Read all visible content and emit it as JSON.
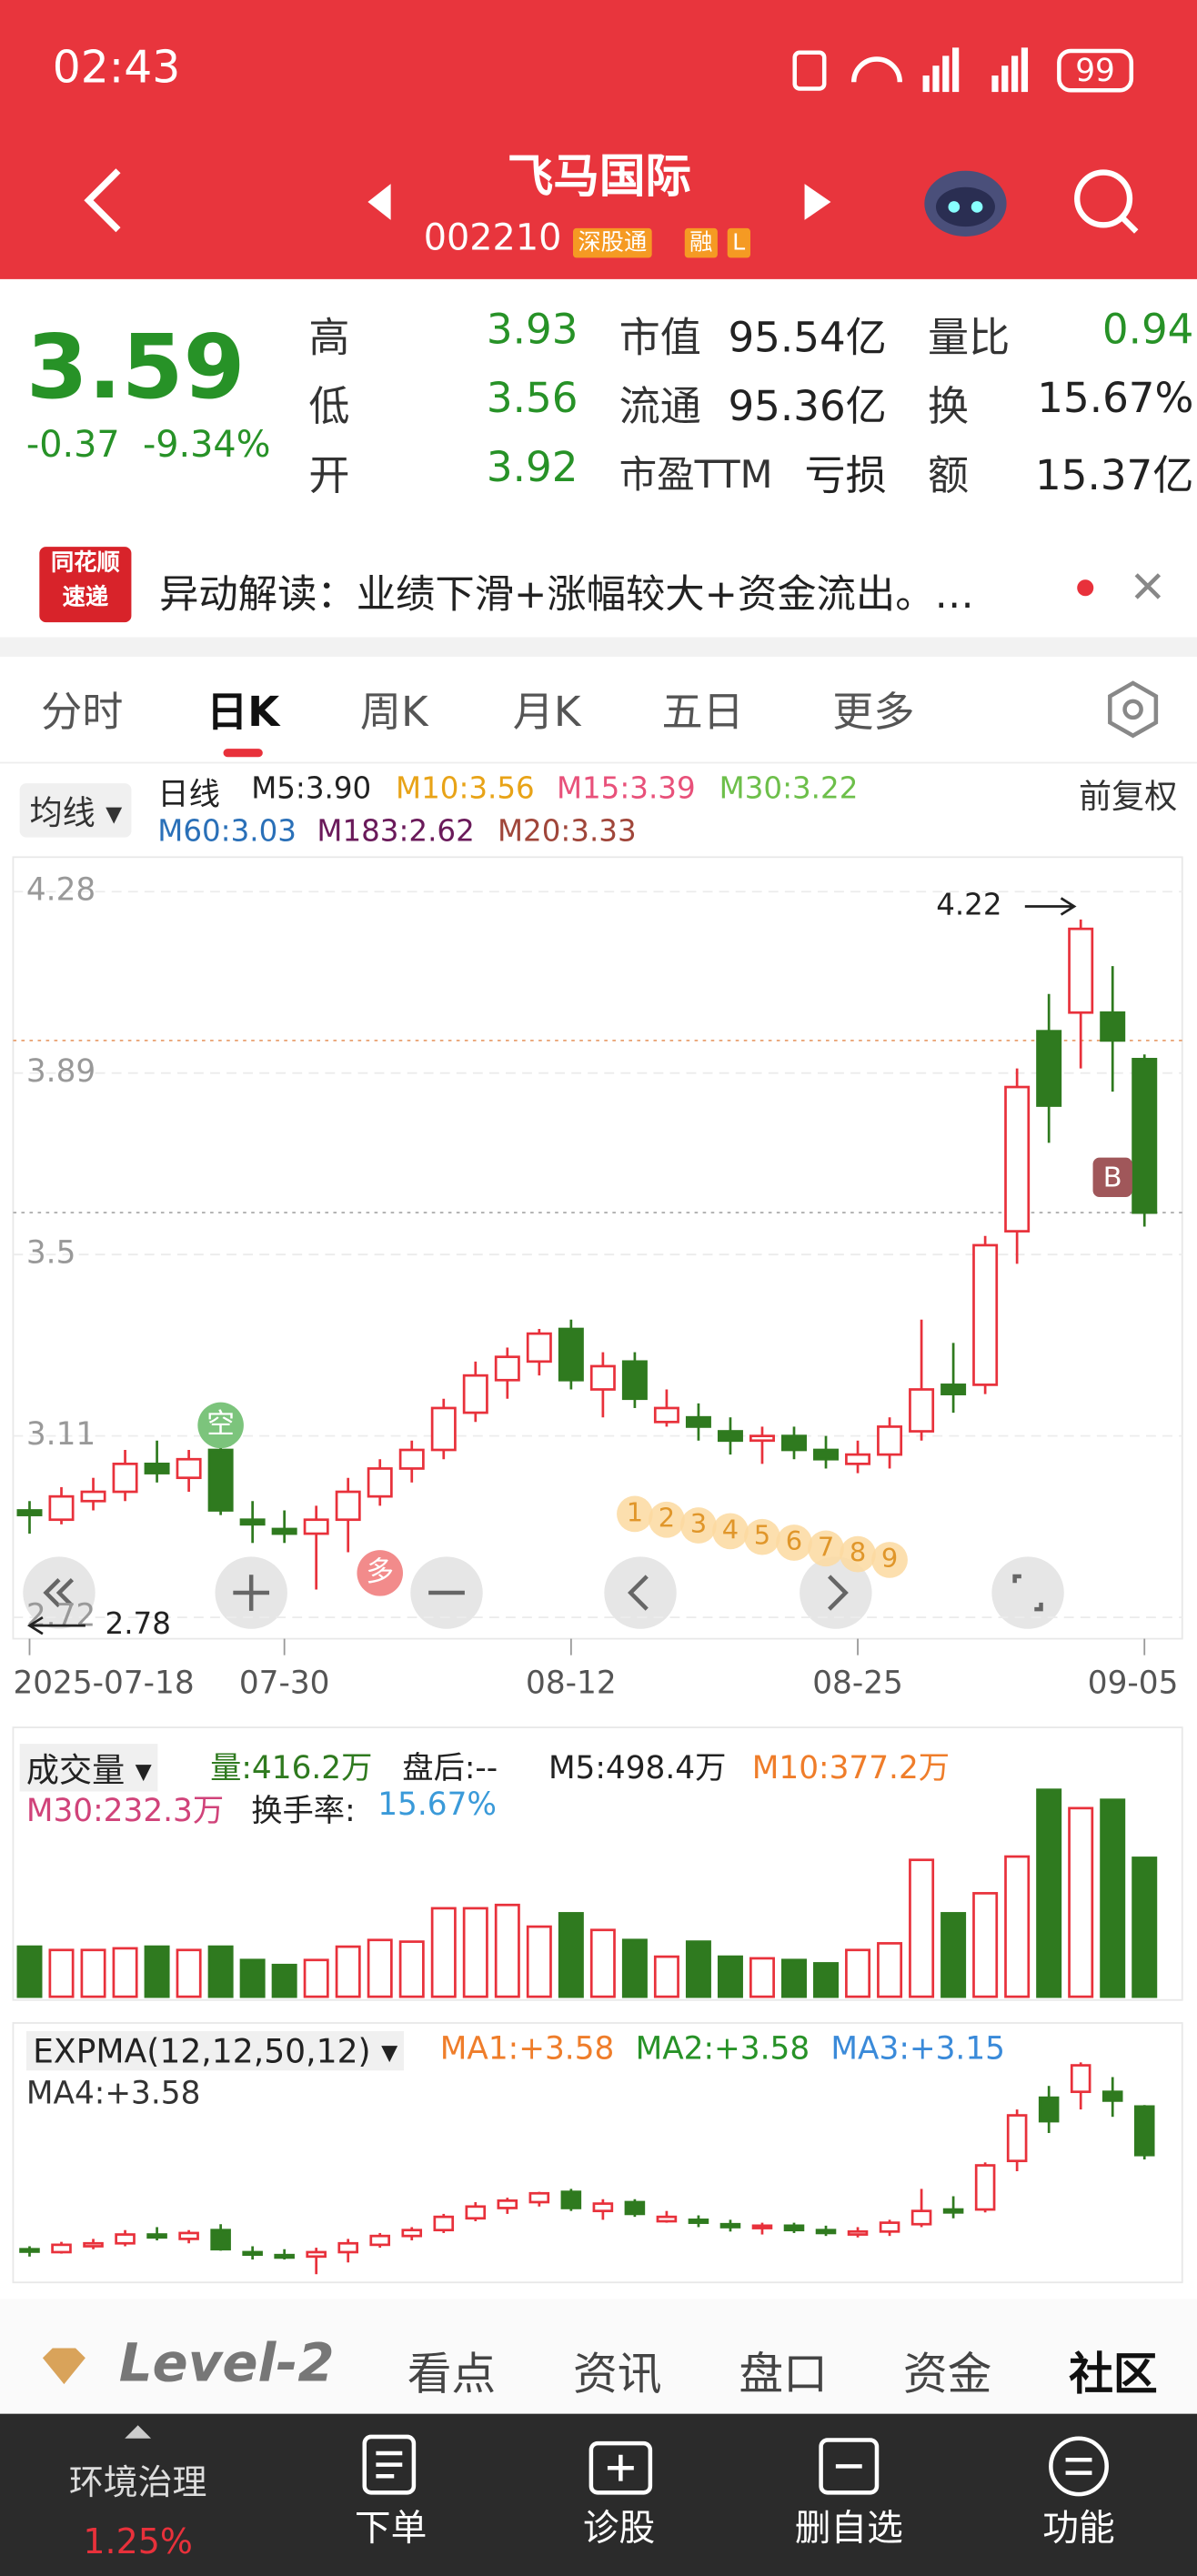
{
  "status": {
    "time": "02:43",
    "battery": "99"
  },
  "header": {
    "title": "飞马国际",
    "code": "002210",
    "tags": [
      "深股通",
      "融",
      "L"
    ]
  },
  "quote": {
    "price": "3.59",
    "change": "-0.37",
    "change_pct": "-9.34%",
    "col1": [
      [
        "高",
        "3.93"
      ],
      [
        "低",
        "3.56"
      ],
      [
        "开",
        "3.92"
      ]
    ],
    "col2": [
      [
        "市值",
        "95.54亿"
      ],
      [
        "流通",
        "95.36亿"
      ],
      [
        "市盈TTM",
        "亏损"
      ]
    ],
    "col3": [
      [
        "量比",
        "0.94"
      ],
      [
        "换",
        "15.67%"
      ],
      [
        "额",
        "15.37亿"
      ]
    ]
  },
  "news": {
    "badge": [
      "同花顺",
      "速递"
    ],
    "text": "异动解读：业绩下滑+涨幅较大+资金流出。…"
  },
  "tabs": [
    "分时",
    "日K",
    "周K",
    "月K",
    "五日",
    "更多"
  ],
  "legend": {
    "selector": "均线",
    "period": "日线",
    "adjust": "前复权",
    "items": [
      {
        "text": "M5:3.90",
        "color": "#222222"
      },
      {
        "text": "M10:3.56",
        "color": "#e8a317"
      },
      {
        "text": "M15:3.39",
        "color": "#e8517a"
      },
      {
        "text": "M30:3.22",
        "color": "#6dbf4a"
      },
      {
        "text": "M60:3.03",
        "color": "#2a70b8"
      },
      {
        "text": "M183:2.62",
        "color": "#6a1a5a"
      },
      {
        "text": "M20:3.33",
        "color": "#a0463a"
      }
    ]
  },
  "chart_data": {
    "type": "candlestick",
    "x": [
      "2025-07-18",
      null,
      null,
      null,
      null,
      null,
      null,
      null,
      "07-30",
      null,
      null,
      null,
      null,
      null,
      null,
      null,
      null,
      "08-12",
      null,
      null,
      null,
      null,
      null,
      null,
      null,
      null,
      "08-25",
      null,
      null,
      null,
      null,
      null,
      null,
      null,
      null,
      "09-05"
    ],
    "open": [
      2.95,
      2.93,
      2.97,
      2.99,
      3.05,
      3.02,
      3.08,
      2.93,
      2.91,
      2.9,
      2.93,
      2.98,
      3.04,
      3.08,
      3.16,
      3.23,
      3.27,
      3.34,
      3.21,
      3.27,
      3.14,
      3.15,
      3.12,
      3.1,
      3.11,
      3.08,
      3.05,
      3.07,
      3.12,
      3.22,
      3.22,
      3.55,
      3.98,
      4.02,
      4.02,
      3.92
    ],
    "high": [
      2.97,
      3.0,
      3.02,
      3.08,
      3.1,
      3.08,
      3.12,
      2.97,
      2.95,
      2.96,
      3.02,
      3.06,
      3.1,
      3.19,
      3.27,
      3.3,
      3.34,
      3.36,
      3.29,
      3.29,
      3.21,
      3.18,
      3.15,
      3.13,
      3.13,
      3.11,
      3.1,
      3.15,
      3.36,
      3.31,
      3.54,
      3.9,
      4.06,
      4.22,
      4.12,
      3.93
    ],
    "low": [
      2.9,
      2.92,
      2.95,
      2.97,
      3.01,
      2.99,
      2.94,
      2.88,
      2.88,
      2.78,
      2.86,
      2.96,
      3.01,
      3.06,
      3.14,
      3.19,
      3.24,
      3.21,
      3.15,
      3.17,
      3.13,
      3.1,
      3.07,
      3.05,
      3.06,
      3.04,
      3.03,
      3.04,
      3.1,
      3.16,
      3.2,
      3.48,
      3.74,
      3.9,
      3.85,
      3.56
    ],
    "close": [
      2.94,
      2.98,
      2.99,
      3.05,
      3.03,
      3.06,
      2.95,
      2.92,
      2.9,
      2.93,
      2.99,
      3.04,
      3.08,
      3.17,
      3.24,
      3.28,
      3.33,
      3.23,
      3.26,
      3.19,
      3.17,
      3.13,
      3.1,
      3.11,
      3.08,
      3.06,
      3.07,
      3.13,
      3.21,
      3.2,
      3.52,
      3.86,
      3.82,
      4.2,
      3.96,
      3.59
    ],
    "ylim": [
      2.72,
      4.28
    ],
    "yticks": [
      4.28,
      3.89,
      3.5,
      3.11,
      2.72
    ],
    "up_color": "#e8313b",
    "down_color": "#2f7a1f",
    "grid": true,
    "high_mark": 4.22,
    "low_mark": 2.78,
    "sell_signal": "空",
    "buy_signal": "多",
    "b_marker": "B",
    "pattern_labels": [
      "1",
      "2",
      "3",
      "4",
      "5",
      "6",
      "7",
      "8",
      "9"
    ]
  },
  "volume": {
    "title": "成交量",
    "legend": [
      {
        "text": "量:416.2万",
        "color": "#2f7a1f"
      },
      {
        "text": "盘后:--",
        "color": "#222222"
      },
      {
        "text": "M5:498.4万",
        "color": "#222222"
      },
      {
        "text": "M10:377.2万",
        "color": "#ef7d2a"
      },
      {
        "text": "M30:232.3万",
        "color": "#d0437a"
      },
      {
        "text": "换手率:",
        "color": "#222222"
      },
      {
        "text": "15.67%",
        "color": "#3a9ad9"
      }
    ],
    "values": [
      150,
      140,
      140,
      145,
      150,
      140,
      150,
      110,
      95,
      110,
      150,
      170,
      165,
      265,
      265,
      275,
      210,
      250,
      200,
      170,
      120,
      165,
      120,
      115,
      110,
      100,
      140,
      160,
      410,
      250,
      310,
      420,
      620,
      565,
      590,
      416.2
    ]
  },
  "expma": {
    "title": "EXPMA(12,12,50,12)",
    "legend": [
      {
        "text": "MA1:+3.58",
        "color": "#ef7d2a"
      },
      {
        "text": "MA2:+3.58",
        "color": "#279227"
      },
      {
        "text": "MA3:+3.15",
        "color": "#3a8ad9"
      },
      {
        "text": "MA4:+3.58",
        "color": "#333333"
      }
    ]
  },
  "bottom_tabs": [
    "Level-2",
    "看点",
    "资讯",
    "盘口",
    "资金",
    "社区"
  ],
  "nav": {
    "sector": "环境治理",
    "sector_change": "1.25%",
    "items": [
      "下单",
      "诊股",
      "删自选",
      "功能"
    ]
  }
}
